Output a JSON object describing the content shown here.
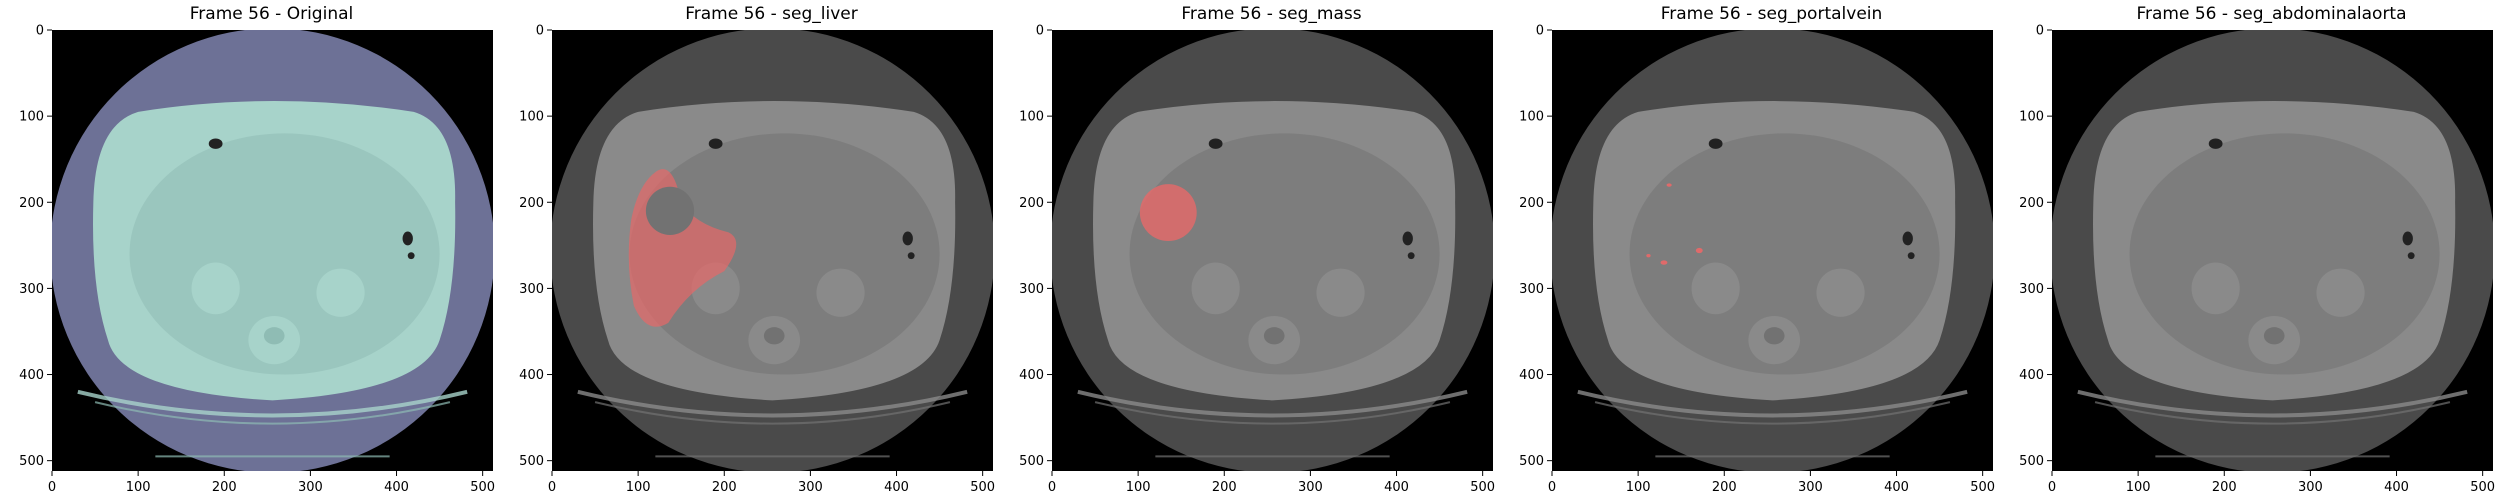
{
  "figure": {
    "panels": [
      {
        "title": "Frame 56 - Original",
        "mode": "original",
        "overlay_color": null,
        "x_ticks": [
          "0",
          "100",
          "200",
          "300",
          "400",
          "500"
        ],
        "y_ticks": [
          "0",
          "100",
          "200",
          "300",
          "400",
          "500"
        ]
      },
      {
        "title": "Frame 56 - seg_liver",
        "mode": "grayscale",
        "overlay_color": "#e06a6a",
        "x_ticks": [
          "0",
          "100",
          "200",
          "300",
          "400",
          "500"
        ],
        "y_ticks": [
          "0",
          "100",
          "200",
          "300",
          "400",
          "500"
        ]
      },
      {
        "title": "Frame 56 - seg_mass",
        "mode": "grayscale",
        "overlay_color": "#e06a6a",
        "x_ticks": [
          "0",
          "100",
          "200",
          "300",
          "400",
          "500"
        ],
        "y_ticks": [
          "0",
          "100",
          "200",
          "300",
          "400",
          "500"
        ]
      },
      {
        "title": "Frame 56 - seg_portalvein",
        "mode": "grayscale",
        "overlay_color": "#e06a6a",
        "x_ticks": [
          "0",
          "100",
          "200",
          "300",
          "400",
          "500"
        ],
        "y_ticks": [
          "0",
          "100",
          "200",
          "300",
          "400",
          "500"
        ]
      },
      {
        "title": "Frame 56 - seg_abdominalaorta",
        "mode": "grayscale",
        "overlay_color": null,
        "x_ticks": [
          "0",
          "100",
          "200",
          "300",
          "400",
          "500"
        ],
        "y_ticks": [
          "0",
          "100",
          "200",
          "300",
          "400",
          "500"
        ]
      }
    ],
    "colors": {
      "background": "#000000",
      "original_fov": "#6d7196",
      "original_body": "#a7d3ca",
      "original_body_dark": "#8fbcb4",
      "gray_fov": "#4a4a4a",
      "gray_body": "#8a8a8a",
      "gray_body_dark": "#727272",
      "overlay": "#e06a6a"
    }
  }
}
